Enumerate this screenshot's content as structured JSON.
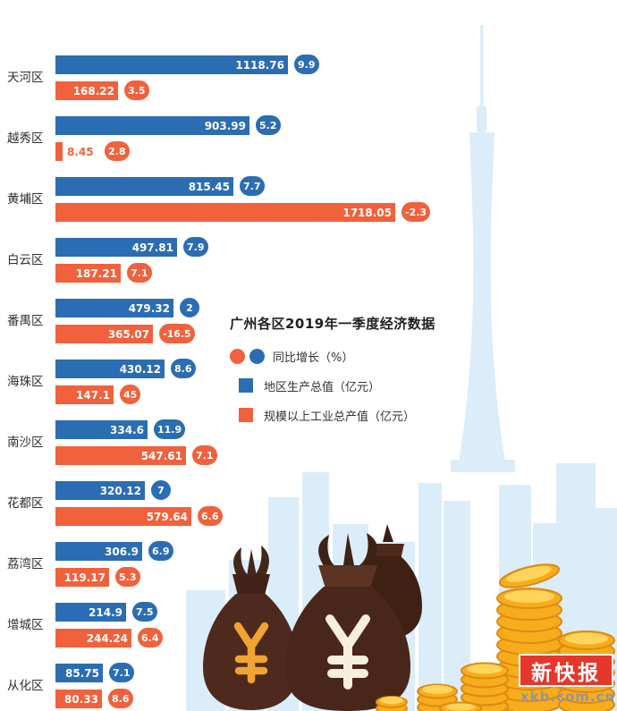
{
  "chart_data": {
    "type": "bar",
    "orientation": "horizontal",
    "title": "广州各区2019年一季度经济数据",
    "growth_legend": "同比增长（%）",
    "categories": [
      "天河区",
      "越秀区",
      "黄埔区",
      "白云区",
      "番禺区",
      "海珠区",
      "南沙区",
      "花都区",
      "荔湾区",
      "增城区",
      "从化区"
    ],
    "series": [
      {
        "name": "地区生产总值（亿元）",
        "color": "#2b6db3",
        "values": [
          1118.76,
          903.99,
          815.45,
          497.81,
          479.32,
          430.12,
          334.6,
          320.12,
          306.9,
          214.9,
          85.75
        ],
        "growth_pct": [
          "9.9",
          "5.2",
          "7.7",
          "7.9",
          "2",
          "8.6",
          "11.9",
          "7",
          "6.9",
          "7.5",
          "7.1"
        ]
      },
      {
        "name": "规模以上工业总产值（亿元）",
        "color": "#f0613c",
        "values": [
          168.22,
          8.45,
          1718.05,
          187.21,
          365.07,
          147.1,
          547.61,
          579.64,
          119.17,
          244.24,
          80.33
        ],
        "growth_pct": [
          "3.5",
          "2.8",
          "-2.3",
          "7.1",
          "-16.5",
          "45",
          "7.1",
          "6.6",
          "5.3",
          "6.4",
          "8.6"
        ]
      }
    ]
  },
  "branding": {
    "logo_text": "新快报",
    "website": "xkb.com.cn"
  },
  "colors": {
    "gdp_bar": "#2b6db3",
    "industry_bar": "#f0613c",
    "logo_red": "#e5372b",
    "skyline_blue": "#dbedf8",
    "coin_gold": "#f7ac1c",
    "bag_brown": "#4e2a1e"
  }
}
